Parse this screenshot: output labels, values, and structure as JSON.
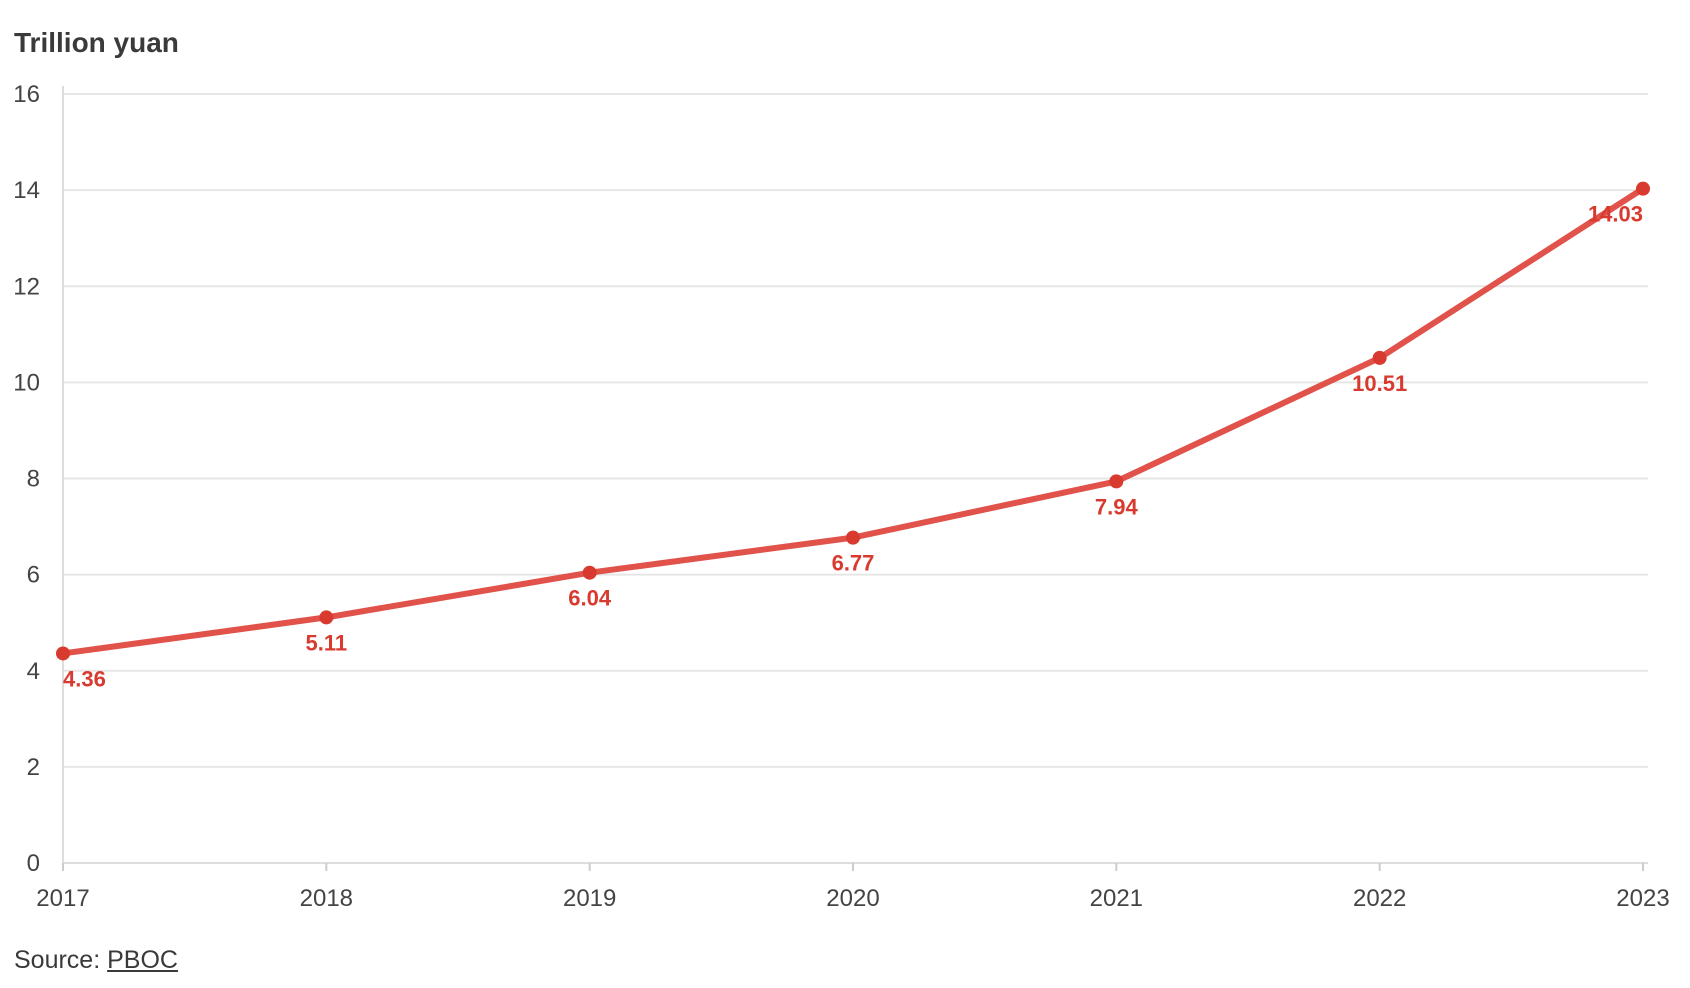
{
  "chart_data": {
    "type": "line",
    "ylabel": "Trillion yuan",
    "xlabel": "",
    "x": [
      "2017",
      "2018",
      "2019",
      "2020",
      "2021",
      "2022",
      "2023"
    ],
    "series": [
      {
        "values": [
          4.36,
          5.11,
          6.04,
          6.77,
          7.94,
          10.51,
          14.03
        ],
        "data_labels": [
          "4.36",
          "5.11",
          "6.04",
          "6.77",
          "7.94",
          "10.51",
          "14.03"
        ]
      }
    ],
    "ylim": [
      0,
      16
    ],
    "y_ticks": [
      "0",
      "2",
      "4",
      "6",
      "8",
      "10",
      "12",
      "14",
      "16"
    ],
    "grid": true,
    "legend": "none",
    "colors": {
      "line": "#e0524a",
      "label": "#d93a2f"
    }
  },
  "source": {
    "prefix": "Source: ",
    "link_text": "PBOC"
  }
}
